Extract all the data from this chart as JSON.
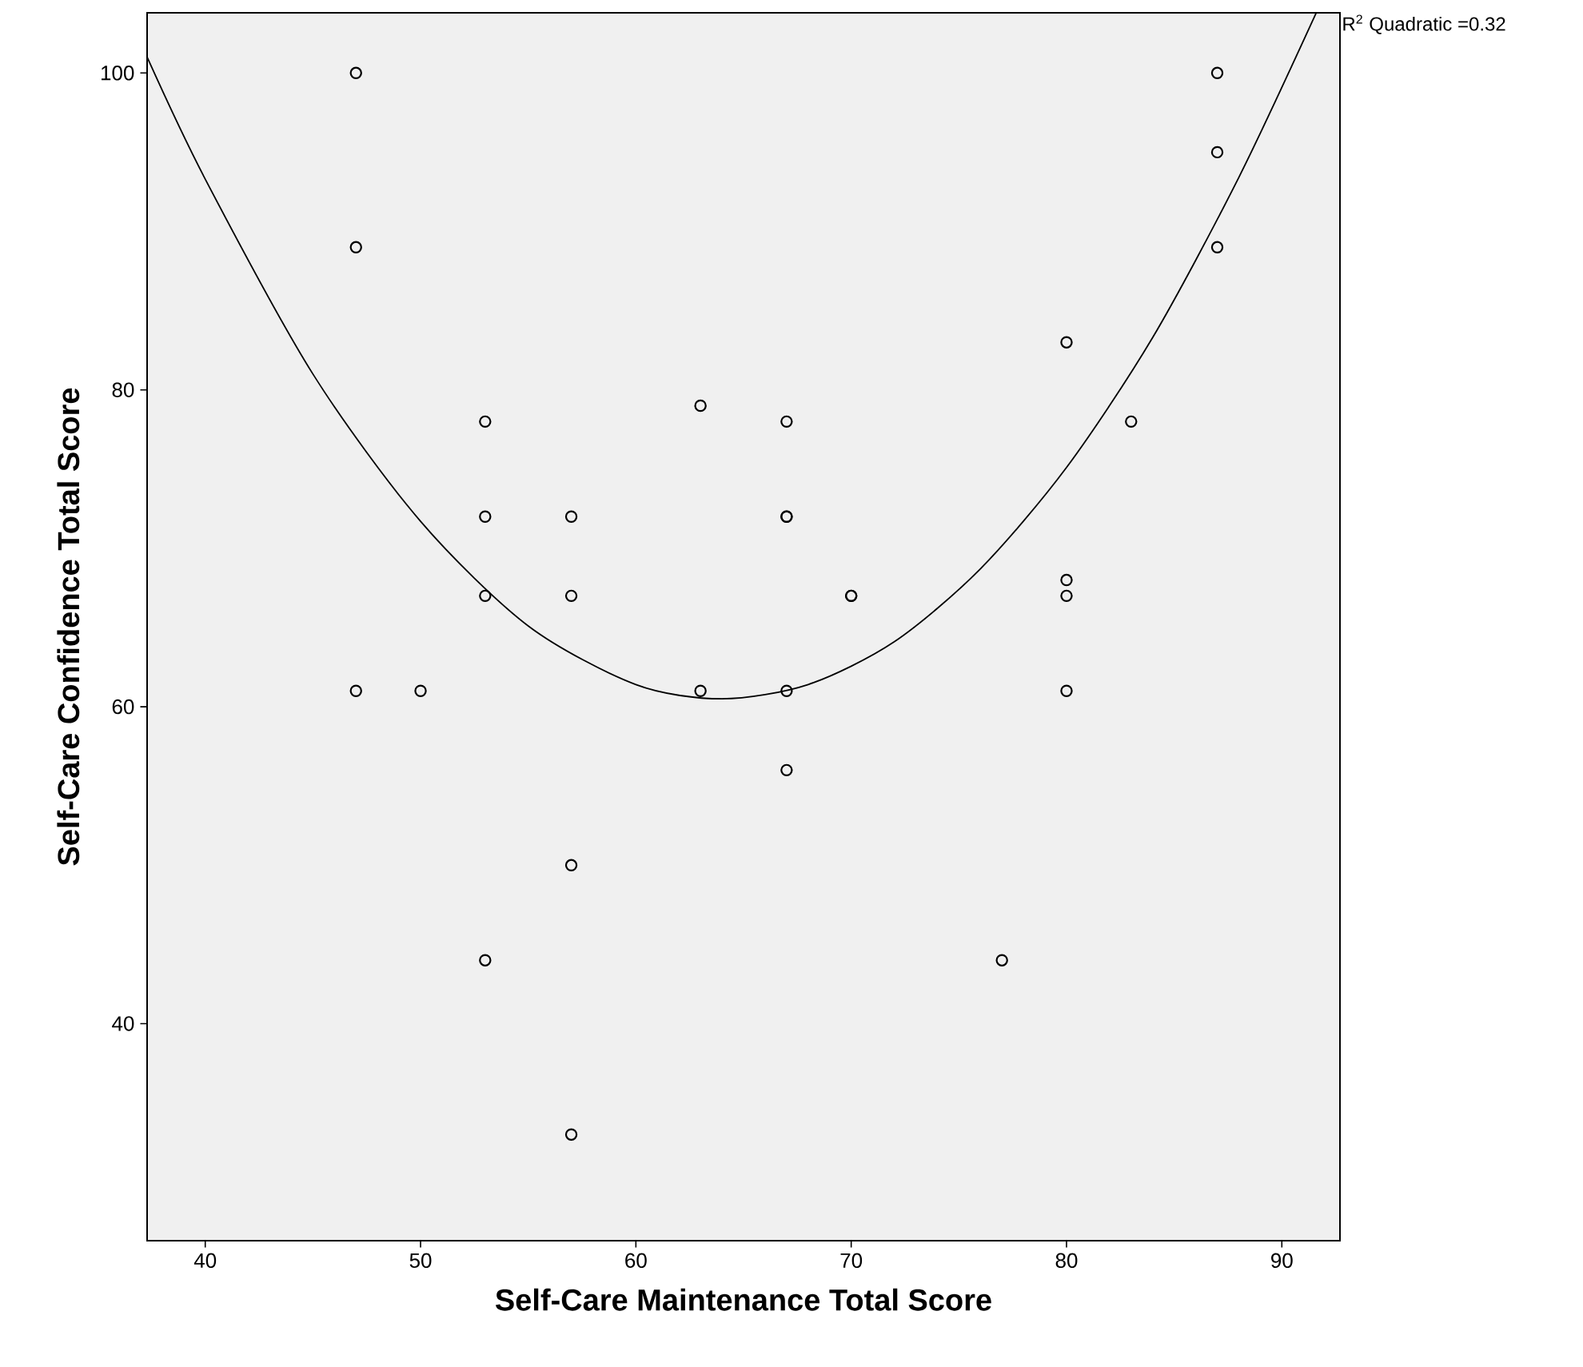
{
  "chart_data": {
    "type": "scatter",
    "xlabel": "Self-Care Maintenance Total Score",
    "ylabel": "Self-Care Confidence Total Score",
    "annotations": [
      "R$^{2}$ Quadratic =0.32"
    ],
    "xlim": [
      37.3,
      92.7
    ],
    "ylim": [
      26.3,
      103.8
    ],
    "xticks": [
      40,
      50,
      60,
      70,
      80,
      90
    ],
    "yticks": [
      40,
      60,
      80,
      100
    ],
    "grid": false,
    "series": [
      {
        "color": "#000000",
        "marker": "circle",
        "x": [
          47,
          47,
          47,
          50,
          53,
          53,
          53,
          53,
          57,
          57,
          57,
          57,
          63,
          63,
          67,
          67,
          67,
          67,
          67,
          70,
          70,
          77,
          80,
          80,
          80,
          80,
          83,
          87,
          87,
          87
        ],
        "values": [
          100,
          89,
          61,
          61,
          78,
          72,
          67,
          44,
          72,
          67,
          50,
          33,
          79,
          61,
          78,
          72,
          72,
          61,
          56,
          67,
          67,
          44,
          83,
          68,
          67,
          61,
          78,
          100,
          95,
          89
        ]
      },
      {
        "type": "line",
        "color": "#000000",
        "marker": "none",
        "line_style": "solid",
        "x": [
          37.3,
          40,
          45,
          50,
          55,
          60,
          64,
          68,
          72,
          76,
          80,
          84,
          88,
          91.6
        ],
        "values": [
          101,
          93.3,
          81,
          71.7,
          65.1,
          61.4,
          60.5,
          61.4,
          64.1,
          68.7,
          75.1,
          83.3,
          93.4,
          103.8
        ]
      }
    ]
  }
}
